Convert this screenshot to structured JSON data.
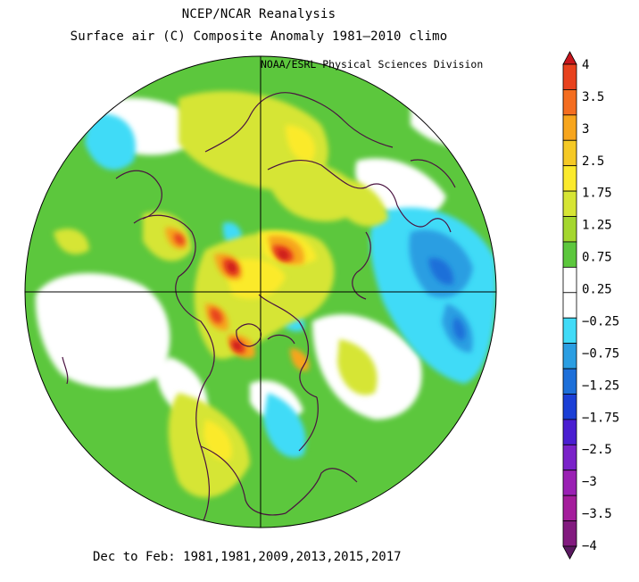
{
  "title_line1": "NCEP/NCAR Reanalysis",
  "title_line2": "Surface air (C) Composite Anomaly 1981–2010 climo",
  "credit": "NOAA/ESRL Physical Sciences Division",
  "footer": "Dec to Feb: 1981,1981,2009,2013,2015,2017",
  "map": {
    "projection": "north-polar-stereographic",
    "variable": "Surface air temperature anomaly"
  },
  "colorbar": {
    "labels": [
      "4",
      "3.5",
      "3",
      "2.5",
      "1.75",
      "1.25",
      "0.75",
      "0.25",
      "−0.25",
      "−0.75",
      "−1.25",
      "−1.75",
      "−2.5",
      "−3",
      "−3.5",
      "−4"
    ],
    "colors": [
      "#c8161c",
      "#e8421e",
      "#f46d20",
      "#f7a51d",
      "#f5c925",
      "#fbea2c",
      "#d6e534",
      "#a4d72e",
      "#5cc73d",
      "#ffffff",
      "#ffffff",
      "#41dbf7",
      "#2b9ee2",
      "#1d6fd9",
      "#1b3fd6",
      "#4a1ed1",
      "#7a22c9",
      "#9a20b4",
      "#a41d9c",
      "#821a7f",
      "#5a1960"
    ]
  }
}
